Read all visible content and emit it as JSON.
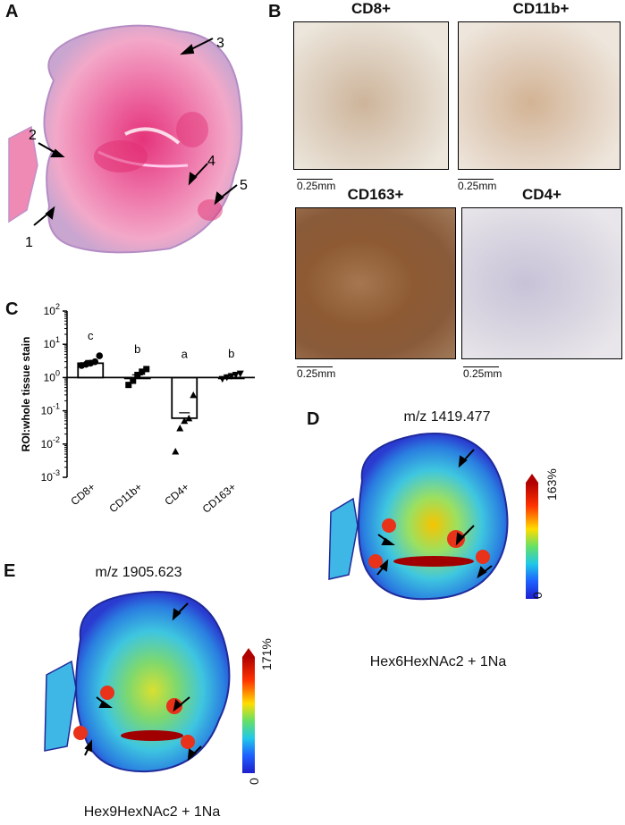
{
  "panels": {
    "A": {
      "letter": "A",
      "callouts": [
        "1",
        "2",
        "3",
        "4",
        "5"
      ]
    },
    "B": {
      "letter": "B",
      "images": [
        {
          "title": "CD8+",
          "scale": "0.25mm"
        },
        {
          "title": "CD11b+",
          "scale": "0.25mm"
        },
        {
          "title": "CD163+",
          "scale": "0.25mm"
        },
        {
          "title": "CD4+",
          "scale": "0.25mm"
        }
      ]
    },
    "C": {
      "letter": "C"
    },
    "D": {
      "letter": "D",
      "mz": "m/z 1419.477",
      "scale_max": "163%",
      "scale_min": "0",
      "compound": "Hex6HexNAc2 + 1Na"
    },
    "E": {
      "letter": "E",
      "mz": "m/z 1905.623",
      "scale_max": "171%",
      "scale_min": "0",
      "compound": "Hex9HexNAc2 + 1Na"
    }
  },
  "chart_data": {
    "type": "bar",
    "ylabel": "ROI:whole tissue stain",
    "yscale": "log",
    "ylim": [
      0.001,
      100
    ],
    "yticks": [
      "10⁰"
    ],
    "ytick_labels": [
      {
        "exp": "2",
        "value": 100
      },
      {
        "exp": "1",
        "value": 10
      },
      {
        "exp": "0",
        "value": 1
      },
      {
        "exp": "-1",
        "value": 0.1
      },
      {
        "exp": "-2",
        "value": 0.01
      },
      {
        "exp": "-3",
        "value": 0.001
      }
    ],
    "categories": [
      "CD8+",
      "CD11b+",
      "CD4+",
      "CD163+"
    ],
    "values": [
      2.7,
      1.0,
      0.06,
      1.0
    ],
    "significance": [
      "c",
      "b",
      "a",
      "b"
    ],
    "points": [
      [
        2.3,
        2.5,
        2.7,
        3.0,
        4.5
      ],
      [
        0.6,
        0.8,
        1.2,
        1.5,
        1.8
      ],
      [
        0.006,
        0.03,
        0.05,
        0.06,
        0.3
      ],
      [
        0.9,
        1.0,
        1.1,
        1.2,
        1.3
      ]
    ],
    "markers": [
      "circle",
      "square",
      "triangle",
      "inverted-triangle"
    ],
    "reference_line": 1
  }
}
